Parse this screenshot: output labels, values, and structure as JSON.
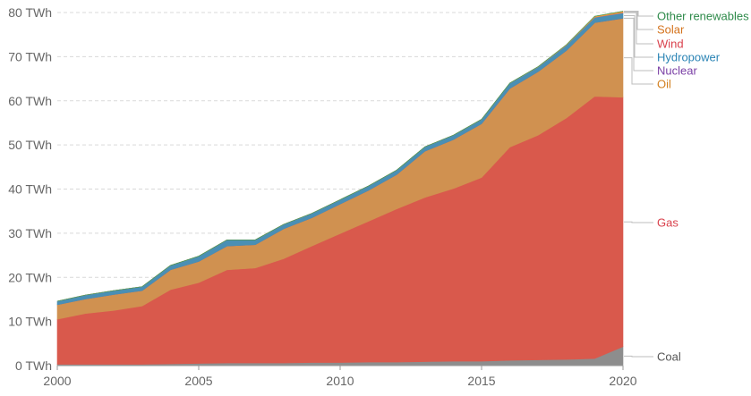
{
  "chart_data": {
    "type": "area",
    "stacked": true,
    "x": [
      2000,
      2001,
      2002,
      2003,
      2004,
      2005,
      2006,
      2007,
      2008,
      2009,
      2010,
      2011,
      2012,
      2013,
      2014,
      2015,
      2016,
      2017,
      2018,
      2019,
      2020
    ],
    "series": [
      {
        "name": "Coal",
        "color": "#8d8d8d",
        "values": [
          0.3,
          0.3,
          0.3,
          0.3,
          0.4,
          0.5,
          0.6,
          0.6,
          0.6,
          0.7,
          0.7,
          0.8,
          0.8,
          0.9,
          1.0,
          1.0,
          1.2,
          1.3,
          1.4,
          1.6,
          4.3
        ]
      },
      {
        "name": "Gas",
        "color": "#d9594c",
        "values": [
          10.2,
          11.5,
          12.2,
          13.2,
          16.8,
          18.3,
          21.1,
          21.5,
          23.6,
          26.4,
          29.2,
          31.9,
          34.7,
          37.2,
          39.1,
          41.6,
          48.3,
          50.9,
          54.7,
          59.4,
          56.5
        ]
      },
      {
        "name": "Oil",
        "color": "#d09150",
        "values": [
          3.3,
          3.3,
          3.6,
          3.5,
          4.5,
          4.8,
          5.4,
          5.3,
          6.8,
          6.4,
          6.7,
          7.0,
          7.8,
          10.5,
          11.1,
          12.2,
          13.3,
          14.4,
          15.3,
          16.7,
          17.9
        ]
      },
      {
        "name": "Nuclear",
        "color": "#7a4e9a",
        "values": [
          0,
          0,
          0,
          0,
          0,
          0,
          0,
          0,
          0,
          0,
          0,
          0,
          0,
          0,
          0,
          0,
          0,
          0,
          0,
          0,
          0
        ]
      },
      {
        "name": "Hydropower",
        "color": "#4a8fb4",
        "values": [
          0.8,
          0.9,
          0.9,
          0.9,
          1.0,
          1.2,
          1.4,
          1.1,
          1.0,
          1.0,
          1.0,
          1.0,
          1.0,
          1.0,
          1.0,
          1.0,
          1.2,
          1.1,
          1.2,
          1.2,
          1.2
        ]
      },
      {
        "name": "Wind",
        "color": "#e06a72",
        "values": [
          0,
          0,
          0,
          0,
          0,
          0,
          0,
          0,
          0,
          0,
          0,
          0,
          0,
          0,
          0,
          0,
          0,
          0,
          0.02,
          0.05,
          0.1
        ]
      },
      {
        "name": "Solar",
        "color": "#e89b3c",
        "values": [
          0,
          0,
          0,
          0,
          0,
          0,
          0,
          0,
          0,
          0,
          0,
          0,
          0,
          0,
          0,
          0.01,
          0.02,
          0.05,
          0.1,
          0.2,
          0.3
        ]
      },
      {
        "name": "Other renewables",
        "color": "#2e9c5a",
        "values": [
          0,
          0,
          0,
          0,
          0,
          0,
          0,
          0,
          0,
          0,
          0,
          0,
          0,
          0,
          0,
          0,
          0,
          0,
          0,
          0,
          0
        ]
      }
    ],
    "legend_label_colors": {
      "Other renewables": "#2e8a4a",
      "Solar": "#d4731d",
      "Wind": "#d9414c",
      "Hydropower": "#2b84b5",
      "Nuclear": "#7a3fa5",
      "Oil": "#d27f1e",
      "Gas": "#d9414c",
      "Coal": "#555555"
    },
    "xlim": [
      2000,
      2020
    ],
    "ylim": [
      0,
      80
    ],
    "x_ticks": [
      "2000",
      "2005",
      "2010",
      "2015",
      "2020"
    ],
    "y_ticks": [
      "0 TWh",
      "10 TWh",
      "20 TWh",
      "30 TWh",
      "40 TWh",
      "50 TWh",
      "60 TWh",
      "70 TWh",
      "80 TWh"
    ],
    "grid": "horizontal-dashed",
    "legend_placement": "right-inline"
  }
}
